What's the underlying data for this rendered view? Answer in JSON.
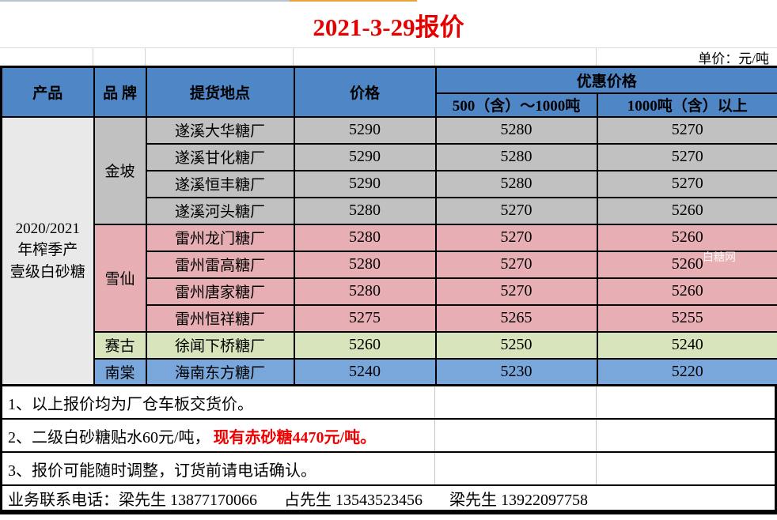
{
  "title": "2021-3-29报价",
  "unit_note": "单价：元/吨",
  "watermark": "白糖网",
  "colors": {
    "header_blue": "#4F86C6",
    "gray": "#C1C1C1",
    "pink": "#E7AFB4",
    "green": "#D8E4BC",
    "blue": "#79A7DC",
    "product_bg": "#E9E9E9",
    "title_red": "#E50000",
    "note_red": "#EE0000",
    "strip_blue": "#B7C4CE",
    "strip_orange": "#E8A43C"
  },
  "table": {
    "headers": {
      "product": "产品",
      "brand": "品 牌",
      "location": "提货地点",
      "price": "价格",
      "discount": "优惠价格",
      "tier1": "500（含）～1000吨",
      "tier2": "1000吨（含）以上"
    },
    "product_lines": [
      "2020/2021",
      "年榨季产",
      "壹级白砂糖"
    ],
    "groups": [
      {
        "brand": "金坡",
        "color": "gray",
        "rows": [
          [
            "遂溪大华糖厂",
            "5290",
            "5280",
            "5270"
          ],
          [
            "遂溪甘化糖厂",
            "5290",
            "5280",
            "5270"
          ],
          [
            "遂溪恒丰糖厂",
            "5290",
            "5280",
            "5270"
          ],
          [
            "遂溪河头糖厂",
            "5280",
            "5270",
            "5260"
          ]
        ]
      },
      {
        "brand": "雪仙",
        "color": "pink",
        "rows": [
          [
            "雷州龙门糖厂",
            "5280",
            "5270",
            "5260"
          ],
          [
            "雷州雷高糖厂",
            "5280",
            "5270",
            "5260"
          ],
          [
            "雷州唐家糖厂",
            "5280",
            "5270",
            "5260"
          ],
          [
            "雷州恒祥糖厂",
            "5275",
            "5265",
            "5255"
          ]
        ]
      },
      {
        "brand": "赛古",
        "color": "green",
        "rows": [
          [
            "徐闻下桥糖厂",
            "5260",
            "5250",
            "5240"
          ]
        ]
      },
      {
        "brand": "南棠",
        "color": "blue",
        "rows": [
          [
            "海南东方糖厂",
            "5240",
            "5230",
            "5220"
          ]
        ]
      }
    ]
  },
  "notes": [
    {
      "text": "1、以上报价均为厂仓车板交货价。",
      "highlight": ""
    },
    {
      "text": "2、二级白砂糖贴水60元/吨，",
      "highlight": "现有赤砂糖4470元/吨。"
    },
    {
      "text": "3、报价可能随时调整，订货前请电话确认。",
      "highlight": ""
    }
  ],
  "contact": {
    "label": "业务联系电话：",
    "entries": [
      "梁先生  13877170066",
      "占先生  13543523456",
      "梁先生  13922097758"
    ]
  }
}
